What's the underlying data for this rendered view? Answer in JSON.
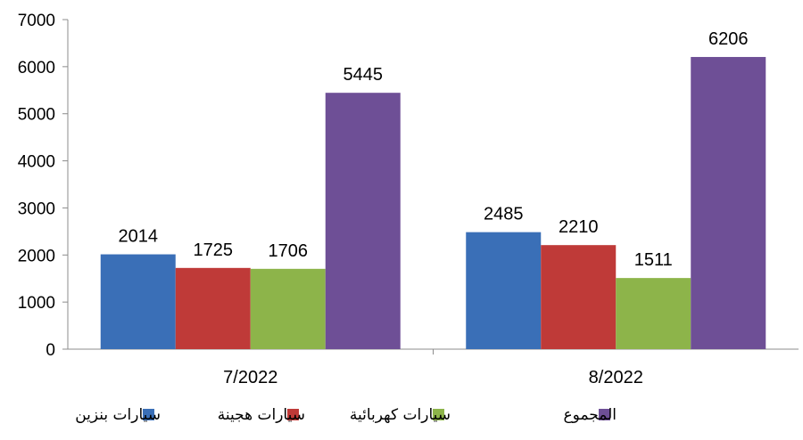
{
  "chart_data": {
    "type": "bar",
    "categories": [
      "7/2022",
      "8/2022"
    ],
    "series": [
      {
        "name": "سيارات بنزين",
        "values": [
          2014,
          2485
        ],
        "color": "#3A6FB7"
      },
      {
        "name": "سيارات هجينة",
        "values": [
          1725,
          2210
        ],
        "color": "#BF3A38"
      },
      {
        "name": "سيارات كهربائية",
        "values": [
          1706,
          1511
        ],
        "color": "#8DB44A"
      },
      {
        "name": "المجموع",
        "values": [
          5445,
          6206
        ],
        "color": "#6E4F96"
      }
    ],
    "yticks": [
      "0",
      "1000",
      "2000",
      "3000",
      "4000",
      "5000",
      "6000",
      "7000"
    ],
    "ylim": [
      0,
      7000
    ],
    "grid": false,
    "legend_position": "bottom",
    "data_labels": [
      [
        "2014",
        "1725",
        "1706",
        "5445"
      ],
      [
        "2485",
        "2210",
        "1511",
        "6206"
      ]
    ]
  }
}
